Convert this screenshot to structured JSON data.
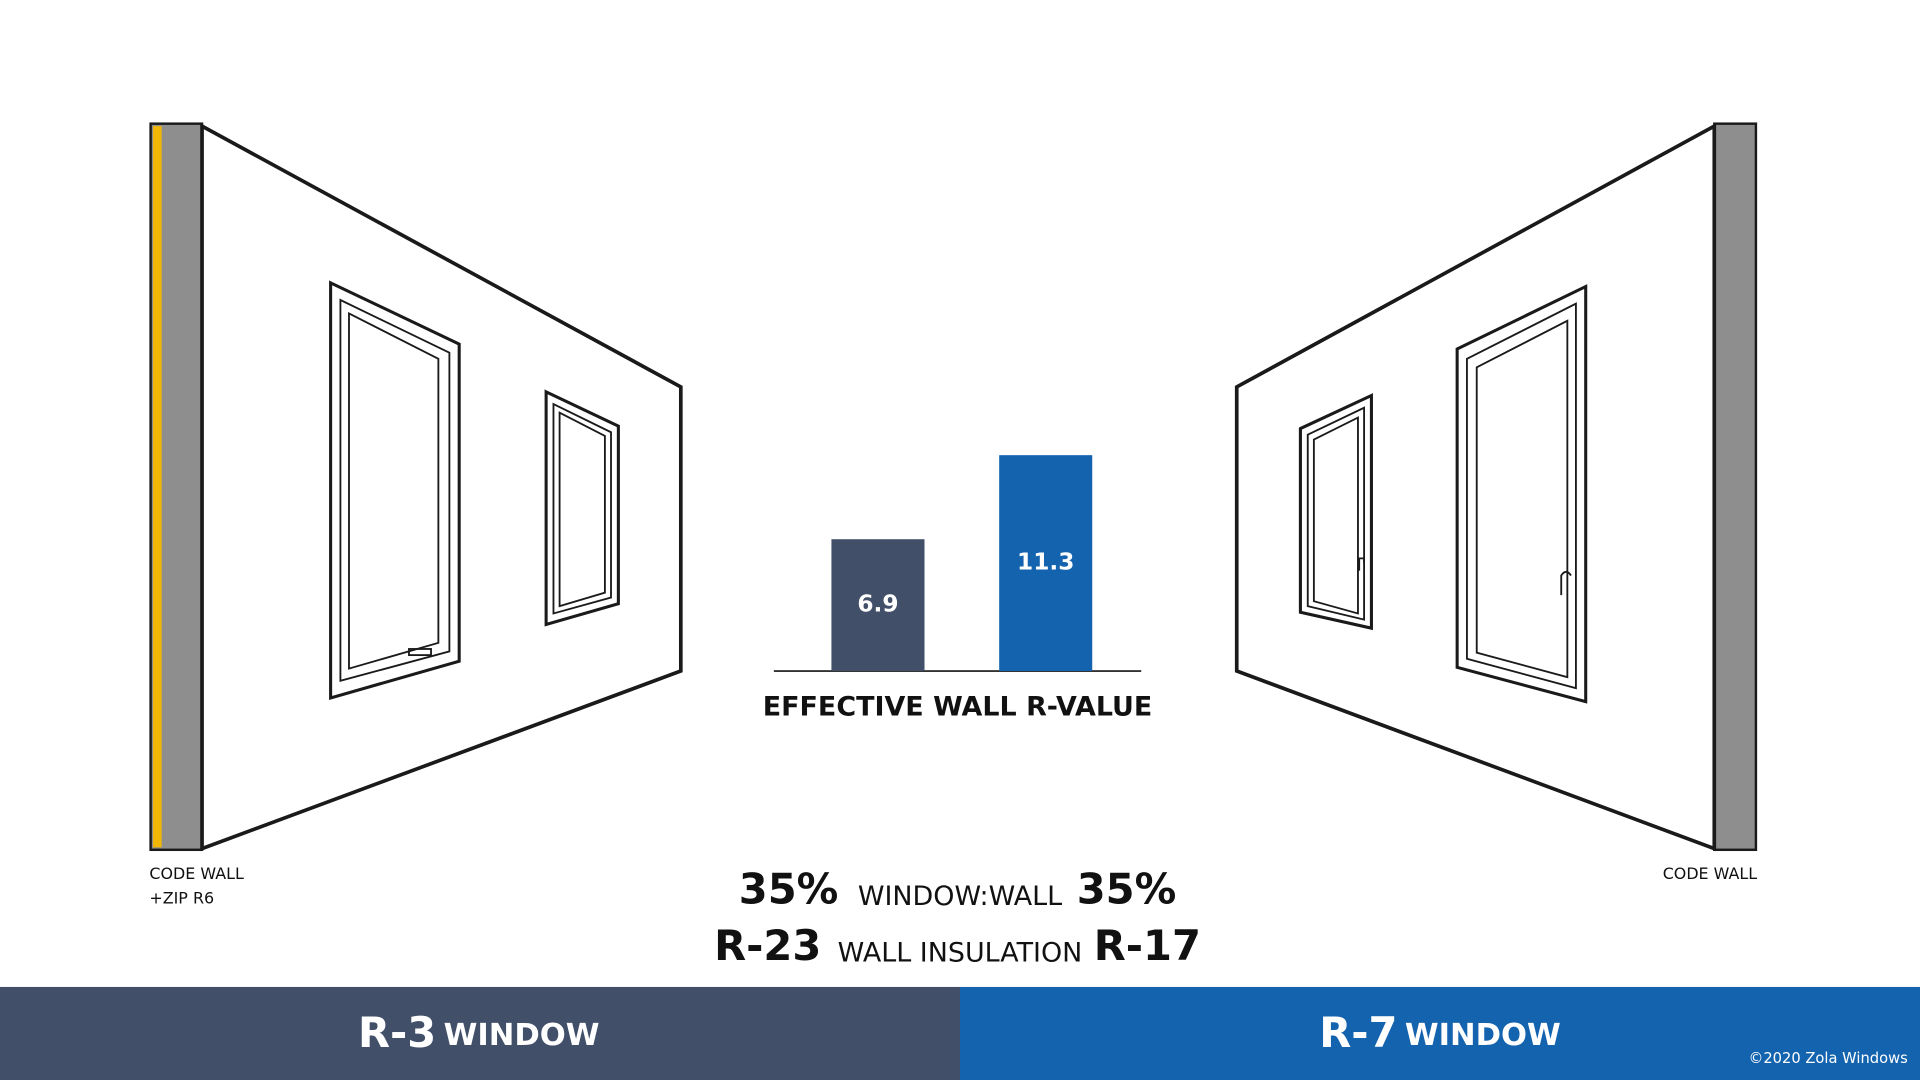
{
  "chart_data": {
    "type": "bar",
    "title": "EFFECTIVE WALL R-VALUE",
    "categories": [
      null,
      null
    ],
    "values": [
      6.9,
      11.3
    ],
    "colors": [
      "#414f69",
      "#1463ae"
    ]
  },
  "left_wall": {
    "label": [
      "CODE WALL",
      "+ZIP R6"
    ]
  },
  "right_wall": {
    "label": [
      "CODE WALL"
    ]
  },
  "comparison": [
    {
      "left": "35%",
      "middle": "WINDOW:WALL",
      "right": "35%"
    },
    {
      "left": "R-23",
      "middle": "WALL INSULATION",
      "right": "R-17"
    }
  ],
  "footer": {
    "left": {
      "rating": "R-3",
      "word": "WINDOW"
    },
    "right": {
      "rating": "R-7",
      "word": "WINDOW"
    },
    "copyright": "©2020 Zola Windows"
  }
}
